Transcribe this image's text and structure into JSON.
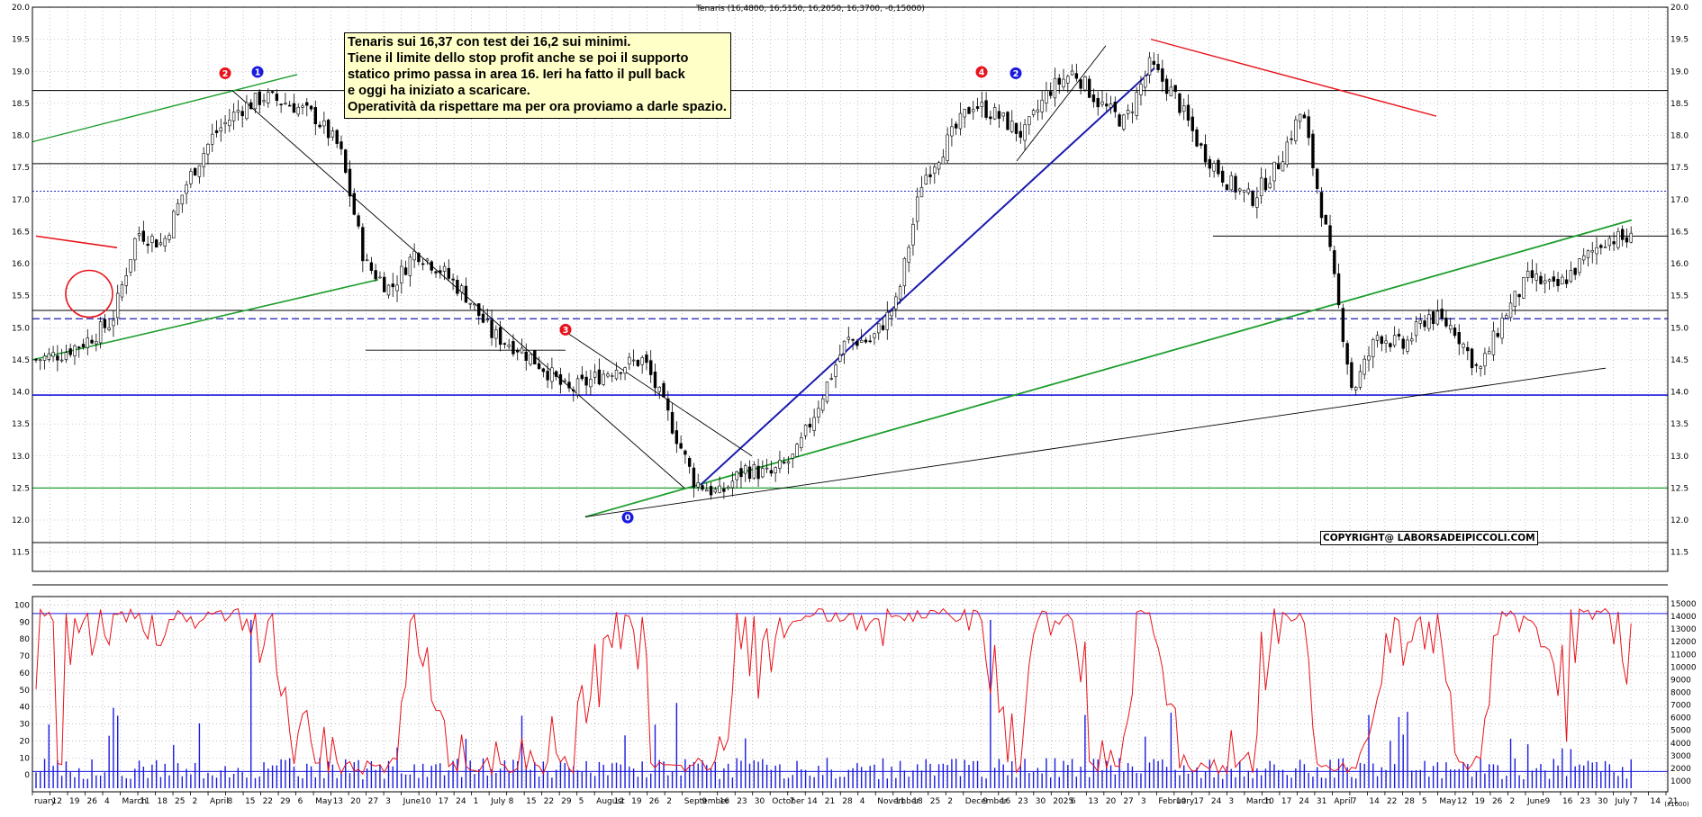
{
  "header": {
    "ohlc_label": "Tenaris (16,4800, 16,5150, 16,2050, 16,3700, -0,15000)"
  },
  "annotation": {
    "lines": [
      "Tenaris sui 16,37 con test dei 16,2 sui minimi.",
      "Tiene il limite dello stop profit anche se poi il supporto",
      "statico primo passa in area 16. Ieri ha fatto il pull back",
      "e oggi ha iniziato a scaricare.",
      "Operatività da rispettare ma per ora proviamo a darle spazio."
    ]
  },
  "copyright": "COPYRIGHT@ LABORSADEIPICCOLI.COM",
  "volume_unit": "(x1000)",
  "markers": [
    {
      "label": "2",
      "color": "#e8121a"
    },
    {
      "label": "1",
      "color": "#1a1ae0"
    },
    {
      "label": "3",
      "color": "#e8121a"
    },
    {
      "label": "0",
      "color": "#1a1ae0"
    },
    {
      "label": "4",
      "color": "#e8121a"
    },
    {
      "label": "2",
      "color": "#1a1ae0"
    }
  ],
  "colors": {
    "candles": "#000000",
    "oscillator": "#e8121a",
    "volume": "#1a1ae0",
    "green_lines": "#1e9e2e",
    "blue_lines": "#1a1ab0",
    "red_lines": "#e8121a"
  },
  "chart_data": [
    {
      "type": "candlestick",
      "ylim": [
        11.2,
        20.0
      ],
      "price_axis_ticks": [
        "20.0",
        "19.5",
        "19.0",
        "18.5",
        "18.0",
        "17.5",
        "17.0",
        "16.5",
        "16.0",
        "15.5",
        "15.0",
        "14.5",
        "14.0",
        "13.5",
        "13.0",
        "12.5",
        "12.0",
        "11.5"
      ],
      "x_axis_labels": [
        "ruary",
        "12",
        "19",
        "26",
        "4",
        "March",
        "11",
        "18",
        "25",
        "2",
        "April",
        "8",
        "15",
        "22",
        "29",
        "6",
        "May",
        "13",
        "20",
        "27",
        "3",
        "June",
        "10",
        "17",
        "24",
        "1",
        "July",
        "8",
        "15",
        "22",
        "29",
        "5",
        "August",
        "12",
        "19",
        "26",
        "2",
        "September",
        "9",
        "16",
        "23",
        "30",
        "October",
        "7",
        "14",
        "21",
        "28",
        "4",
        "November",
        "11",
        "18",
        "25",
        "2",
        "December",
        "9",
        "16",
        "23",
        "30",
        "2025",
        "6",
        "13",
        "20",
        "27",
        "3",
        "February",
        "10",
        "17",
        "24",
        "3",
        "March",
        "10",
        "17",
        "24",
        "31",
        "April",
        "7",
        "14",
        "22",
        "28",
        "5",
        "May",
        "12",
        "19",
        "26",
        "2",
        "June",
        "9",
        "16",
        "23",
        "30",
        "July",
        "7",
        "14",
        "21"
      ],
      "close_path": [
        14.5,
        14.6,
        14.8,
        15.1,
        16.5,
        16.3,
        17.3,
        18.0,
        18.4,
        18.6,
        18.5,
        18.3,
        17.8,
        16.0,
        15.6,
        16.2,
        15.9,
        15.5,
        14.9,
        14.7,
        14.4,
        14.0,
        14.2,
        14.4,
        14.5,
        13.6,
        12.6,
        12.4,
        12.8,
        12.7,
        13.0,
        13.9,
        14.8,
        14.8,
        15.4,
        17.3,
        17.9,
        18.5,
        18.3,
        18.0,
        18.7,
        19.0,
        18.5,
        18.2,
        19.1,
        18.6,
        17.8,
        17.3,
        17.0,
        17.5,
        18.4,
        16.4,
        14.0,
        14.9,
        14.7,
        15.2,
        15.0,
        14.3,
        15.2,
        15.8,
        15.6,
        16.0,
        16.4,
        16.37
      ],
      "horizontal_levels": [
        18.7,
        17.56,
        17.13,
        16.43,
        15.27,
        15.14,
        13.95,
        12.5,
        11.65
      ],
      "trendlines": 11
    },
    {
      "type": "line+bar",
      "oscillator_ylim": [
        -10,
        105
      ],
      "oscillator_ticks": [
        "100",
        "90",
        "80",
        "70",
        "60",
        "50",
        "40",
        "30",
        "20",
        "10",
        "0"
      ],
      "volume_ticks": [
        "15000",
        "14000",
        "13000",
        "12000",
        "11000",
        "10000",
        "9000",
        "8000",
        "7000",
        "6000",
        "5000",
        "4000",
        "3000",
        "2000",
        "1000"
      ],
      "oscillator_levels": [
        95,
        2
      ]
    }
  ]
}
